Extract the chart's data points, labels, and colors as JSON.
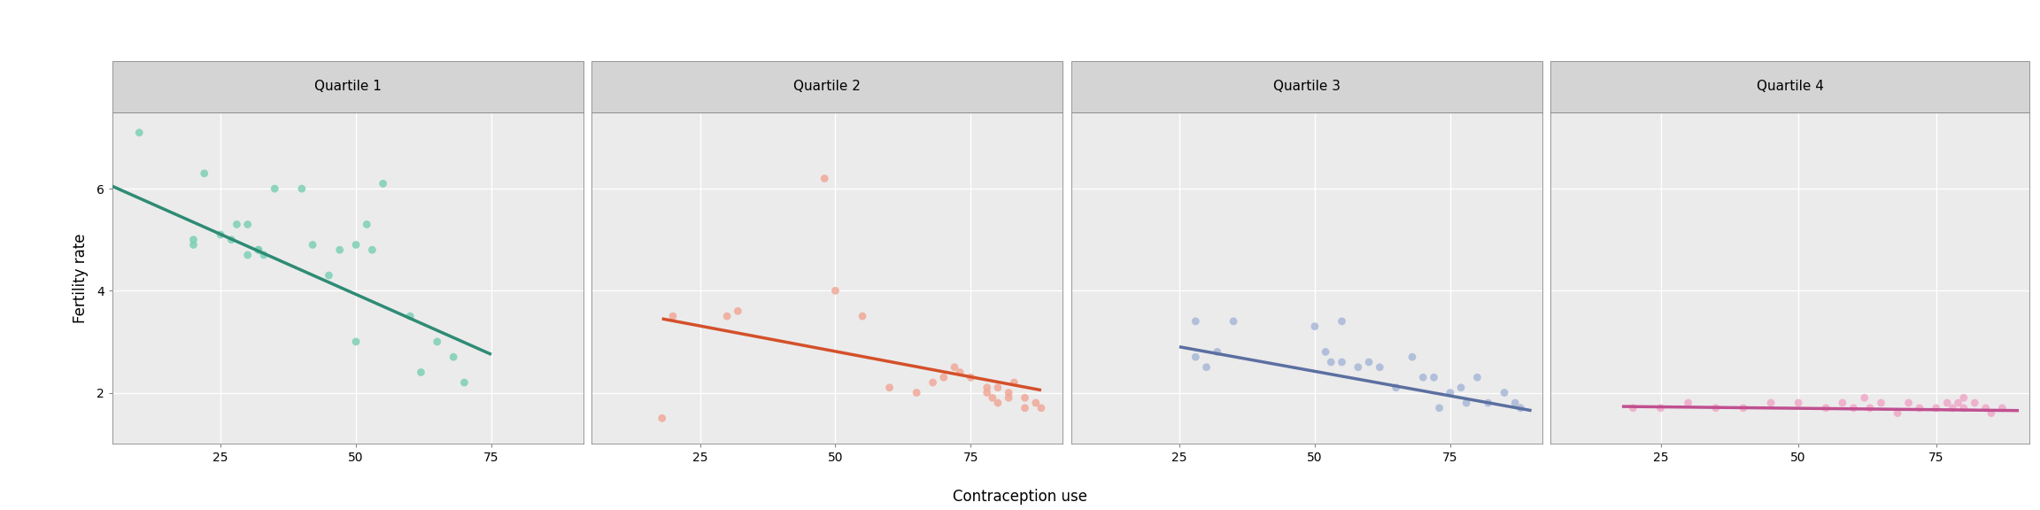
{
  "panels": [
    {
      "title": "Quartile 1",
      "scatter_color": "#7DCFB6",
      "line_color": "#2E8B74",
      "x": [
        10,
        20,
        20,
        22,
        25,
        27,
        28,
        30,
        30,
        32,
        32,
        33,
        35,
        40,
        42,
        45,
        47,
        50,
        50,
        52,
        53,
        55,
        60,
        62,
        65,
        68,
        70
      ],
      "y": [
        7.1,
        4.9,
        5.0,
        6.3,
        5.1,
        5.0,
        5.3,
        4.7,
        5.3,
        4.8,
        4.8,
        4.7,
        6.0,
        6.0,
        4.9,
        4.3,
        4.8,
        4.9,
        3.0,
        5.3,
        4.8,
        6.1,
        3.5,
        2.4,
        3.0,
        2.7,
        2.2
      ],
      "line_x": [
        5,
        75
      ],
      "line_y": [
        6.05,
        2.75
      ]
    },
    {
      "title": "Quartile 2",
      "scatter_color": "#F0A898",
      "line_color": "#D4502A",
      "x": [
        18,
        20,
        30,
        32,
        48,
        50,
        55,
        60,
        65,
        68,
        70,
        72,
        73,
        75,
        78,
        78,
        79,
        80,
        80,
        82,
        82,
        83,
        85,
        85,
        87,
        88
      ],
      "y": [
        1.5,
        3.5,
        3.5,
        3.6,
        6.2,
        4.0,
        3.5,
        2.1,
        2.0,
        2.2,
        2.3,
        2.5,
        2.4,
        2.3,
        2.0,
        2.1,
        1.9,
        2.1,
        1.8,
        2.0,
        1.9,
        2.2,
        1.9,
        1.7,
        1.8,
        1.7
      ],
      "line_x": [
        18,
        88
      ],
      "line_y": [
        3.45,
        2.05
      ]
    },
    {
      "title": "Quartile 3",
      "scatter_color": "#A8B8D8",
      "line_color": "#5B6FA0",
      "x": [
        28,
        28,
        30,
        32,
        35,
        50,
        52,
        53,
        55,
        55,
        58,
        60,
        62,
        65,
        68,
        70,
        72,
        73,
        75,
        77,
        78,
        80,
        82,
        85,
        87,
        88
      ],
      "y": [
        3.4,
        2.7,
        2.5,
        2.8,
        3.4,
        3.3,
        2.8,
        2.6,
        3.4,
        2.6,
        2.5,
        2.6,
        2.5,
        2.1,
        2.7,
        2.3,
        2.3,
        1.7,
        2.0,
        2.1,
        1.8,
        2.3,
        1.8,
        2.0,
        1.8,
        1.7
      ],
      "line_x": [
        25,
        90
      ],
      "line_y": [
        2.9,
        1.65
      ]
    },
    {
      "title": "Quartile 4",
      "scatter_color": "#F0A8C8",
      "line_color": "#C05090",
      "x": [
        20,
        25,
        30,
        35,
        40,
        45,
        50,
        55,
        58,
        60,
        62,
        63,
        65,
        68,
        70,
        72,
        75,
        77,
        78,
        79,
        80,
        80,
        82,
        84,
        85,
        87
      ],
      "y": [
        1.7,
        1.7,
        1.8,
        1.7,
        1.7,
        1.8,
        1.8,
        1.7,
        1.8,
        1.7,
        1.9,
        1.7,
        1.8,
        1.6,
        1.8,
        1.7,
        1.7,
        1.8,
        1.7,
        1.8,
        1.7,
        1.9,
        1.8,
        1.7,
        1.6,
        1.7
      ],
      "line_x": [
        18,
        90
      ],
      "line_y": [
        1.73,
        1.65
      ]
    }
  ],
  "ylabel": "Fertility rate",
  "xlabel": "Contraception use",
  "ylim": [
    1.0,
    7.5
  ],
  "xlim": [
    5,
    92
  ],
  "xticks": [
    25,
    50,
    75
  ],
  "yticks": [
    2,
    4,
    6
  ],
  "panel_bg": "#EBEBEB",
  "strip_bg": "#D4D4D4",
  "strip_border": "#888888",
  "grid_color": "#FFFFFF",
  "fig_bg": "#FFFFFF",
  "spine_color": "#888888"
}
